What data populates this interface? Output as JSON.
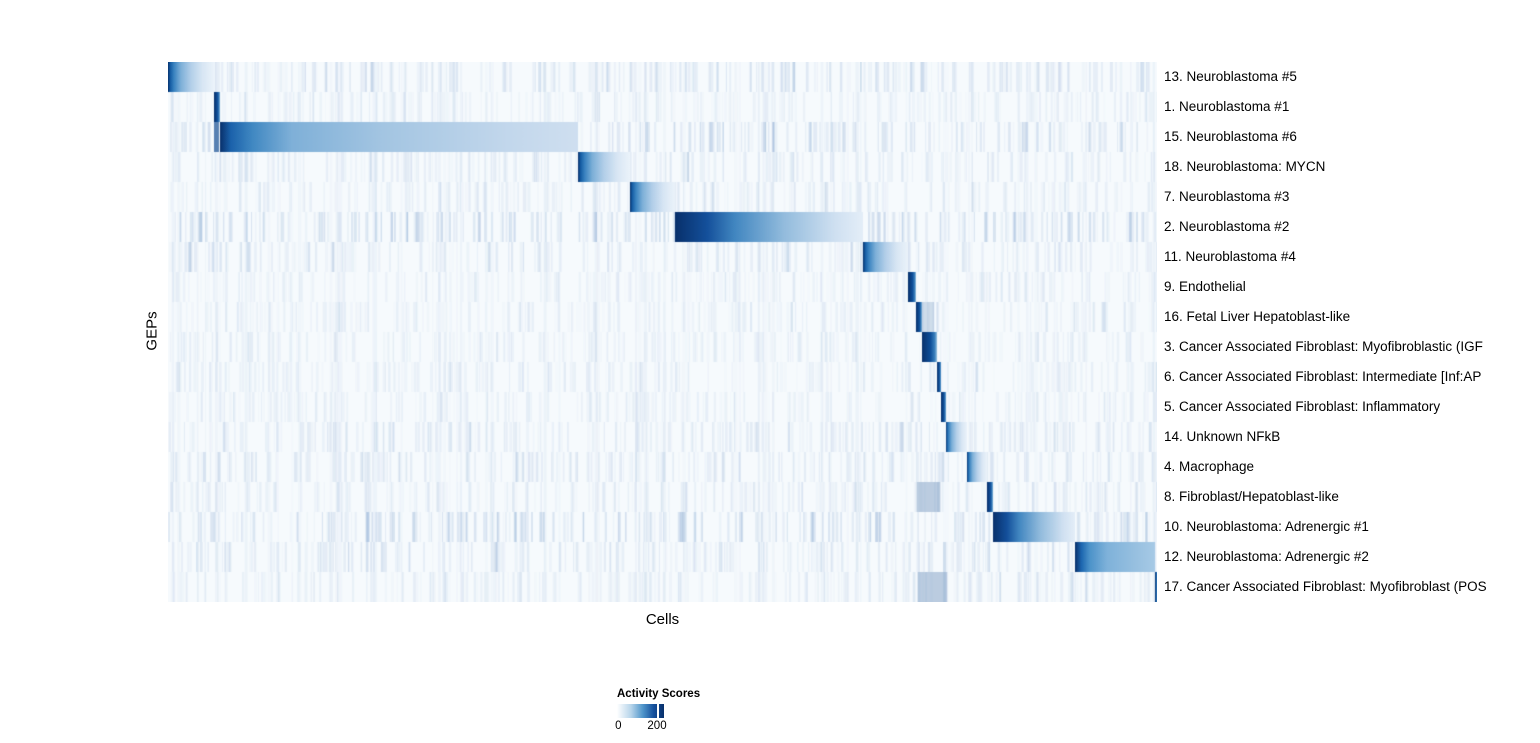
{
  "page": {
    "background": "#ffffff"
  },
  "chart_data": {
    "type": "heatmap",
    "title": "",
    "xlabel": "Cells",
    "ylabel": "GEPs",
    "colormap": "Blues white-to-dark-navy",
    "legend": {
      "title": "Activity Scores",
      "labels": [
        "0",
        "200"
      ],
      "values": [
        0,
        200
      ],
      "tick_frac": 0.86,
      "gradient": [
        [
          0,
          "#ffffff"
        ],
        [
          0.3,
          "#b6d4ea"
        ],
        [
          0.55,
          "#4f95ca"
        ],
        [
          0.78,
          "#15509d"
        ],
        [
          1,
          "#08306b"
        ]
      ]
    },
    "rows": [
      {
        "label": "13. Neuroblastoma #5",
        "block": [
          0.0,
          0.0465
        ],
        "profile": "default",
        "noise": 1.6
      },
      {
        "label": "1. Neuroblastoma #1",
        "block": [
          0.0465,
          0.0526
        ],
        "profile": "dark",
        "noise": 0.9
      },
      {
        "label": "15. Neuroblastoma #6",
        "block": [
          0.0526,
          0.4146
        ],
        "profile": "plateau",
        "noise": 1.8,
        "extra": [
          [
            0.0465,
            0.005,
            0.8
          ]
        ]
      },
      {
        "label": "18. Neuroblastoma: MYCN",
        "block": [
          0.4146,
          0.4671
        ],
        "profile": "default",
        "noise": 1.1
      },
      {
        "label": "7. Neuroblastoma #3",
        "block": [
          0.4671,
          0.5126
        ],
        "profile": "default",
        "noise": 1.0
      },
      {
        "label": "2. Neuroblastoma #2",
        "block": [
          0.5126,
          0.7027
        ],
        "profile": "wide_dark",
        "noise": 2.2
      },
      {
        "label": "11. Neuroblastoma #4",
        "block": [
          0.7027,
          0.7482
        ],
        "profile": "default",
        "noise": 1.2
      },
      {
        "label": "9. Endothelial",
        "block": [
          0.7482,
          0.7563
        ],
        "profile": "dark",
        "noise": 0.9
      },
      {
        "label": "16. Fetal Liver Hepatoblast-like",
        "block": [
          0.7563,
          0.7624
        ],
        "profile": "dark",
        "noise": 0.9,
        "extra": [
          [
            0.7624,
            0.012,
            0.2
          ]
        ]
      },
      {
        "label": "3. Cancer Associated Fibroblast: Myofibroblastic (IGF",
        "block": [
          0.7624,
          0.7776
        ],
        "profile": "dark",
        "noise": 0.9
      },
      {
        "label": "6. Cancer Associated Fibroblast: Intermediate [Inf:AP",
        "block": [
          0.7776,
          0.7816
        ],
        "profile": "dark",
        "noise": 0.9
      },
      {
        "label": "5. Cancer Associated Fibroblast: Inflammatory",
        "block": [
          0.7816,
          0.7867
        ],
        "profile": "dark",
        "noise": 0.9
      },
      {
        "label": "14. Unknown NFkB",
        "block": [
          0.7867,
          0.8079
        ],
        "profile": "default",
        "noise": 1.3
      },
      {
        "label": "4. Macrophage",
        "block": [
          0.8079,
          0.8281
        ],
        "profile": "default",
        "noise": 1.3
      },
      {
        "label": "8. Fibroblast/Hepatoblast-like",
        "block": [
          0.8281,
          0.8342
        ],
        "profile": "dark",
        "noise": 1.0,
        "extra": [
          [
            0.757,
            0.024,
            0.3
          ]
        ]
      },
      {
        "label": "10. Neuroblastoma: Adrenergic #1",
        "block": [
          0.8342,
          0.9171
        ],
        "profile": "wide_dark",
        "noise": 2.0
      },
      {
        "label": "12. Neuroblastoma: Adrenergic #2",
        "block": [
          0.9171,
          0.998
        ],
        "profile": "medium_end",
        "noise": 1.4
      },
      {
        "label": "17. Cancer Associated Fibroblast: Myofibroblast (POS",
        "block": [
          0.998,
          1.0
        ],
        "profile": "dark",
        "noise": 1.0,
        "extra": [
          [
            0.758,
            0.03,
            0.3
          ]
        ]
      }
    ],
    "style": {
      "bg": "#f6fafd",
      "noise_seed": 42,
      "row_stripe_count": 240,
      "shared_stripe_count": 60,
      "stripe_rgb": "110,150,200",
      "extra_rgb": "50,100,160",
      "profiles": {
        "default": [
          [
            0,
            "#08306b"
          ],
          [
            0.05,
            "#155da4"
          ],
          [
            0.13,
            "#3a83c0"
          ],
          [
            0.28,
            "#7db0d8"
          ],
          [
            0.5,
            "#b3cfe9"
          ],
          [
            0.75,
            "#d8e6f4"
          ],
          [
            1,
            "#ebf3fa"
          ]
        ],
        "plateau": [
          [
            0,
            "#08306b"
          ],
          [
            0.03,
            "#1b62ab"
          ],
          [
            0.09,
            "#4088c2"
          ],
          [
            0.2,
            "#7fb0d8"
          ],
          [
            0.45,
            "#a3c5e2"
          ],
          [
            0.8,
            "#c2d7ec"
          ],
          [
            1,
            "#cfdff0"
          ]
        ],
        "wide_dark": [
          [
            0,
            "#08306b"
          ],
          [
            0.17,
            "#14509b"
          ],
          [
            0.32,
            "#4287c1"
          ],
          [
            0.58,
            "#93bcdd"
          ],
          [
            0.85,
            "#cfe0f1"
          ],
          [
            1,
            "#e4eef8"
          ]
        ],
        "medium_end": [
          [
            0,
            "#08306b"
          ],
          [
            0.08,
            "#1d67b0"
          ],
          [
            0.18,
            "#4b92c9"
          ],
          [
            0.4,
            "#7fb2da"
          ],
          [
            0.75,
            "#97c0e0"
          ],
          [
            1,
            "#a7cae6"
          ]
        ],
        "dark": [
          [
            0,
            "#08306b"
          ],
          [
            0.55,
            "#0d4d97"
          ],
          [
            0.85,
            "#3a80bd"
          ],
          [
            1,
            "#9dc4e0"
          ]
        ]
      }
    }
  }
}
